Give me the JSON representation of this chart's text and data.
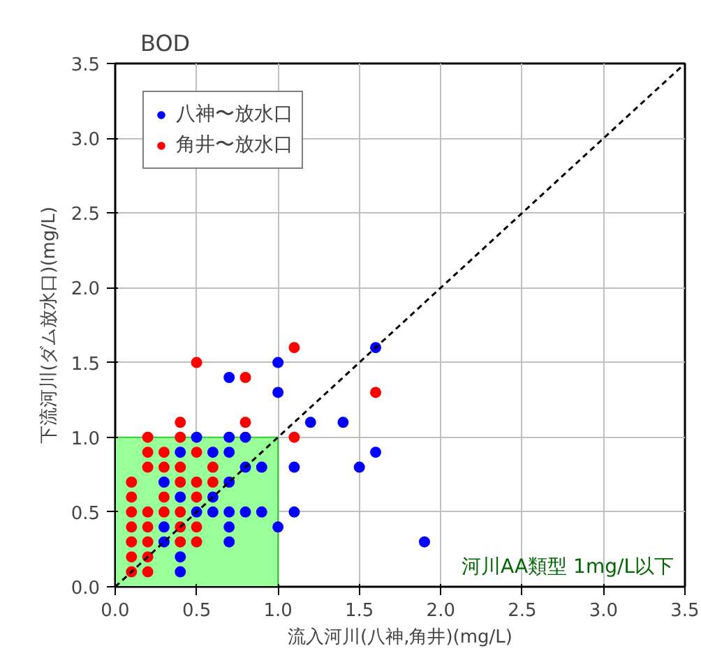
{
  "chart_data": {
    "type": "scatter",
    "title": "BOD",
    "xlabel": "流入河川(八神,角井)(mg/L)",
    "ylabel": "下流河川(ダム放水口)(mg/L)",
    "xlim": [
      0,
      3.5
    ],
    "ylim": [
      0,
      3.5
    ],
    "xticks": [
      {
        "value": 0,
        "label": "0.0"
      },
      {
        "value": 0.5,
        "label": "0.5"
      },
      {
        "value": 1,
        "label": "1.0"
      },
      {
        "value": 1.5,
        "label": "1.5"
      },
      {
        "value": 2,
        "label": "2.0"
      },
      {
        "value": 2.5,
        "label": "2.5"
      },
      {
        "value": 3,
        "label": "3.0"
      },
      {
        "value": 3.5,
        "label": "3.5"
      }
    ],
    "yticks": [
      {
        "value": 0,
        "label": "0.0"
      },
      {
        "value": 0.5,
        "label": "0.5"
      },
      {
        "value": 1,
        "label": "1.0"
      },
      {
        "value": 1.5,
        "label": "1.5"
      },
      {
        "value": 2,
        "label": "2.0"
      },
      {
        "value": 2.5,
        "label": "2.5"
      },
      {
        "value": 3,
        "label": "3.0"
      },
      {
        "value": 3.5,
        "label": "3.5"
      }
    ],
    "grid": true,
    "legend": "top left",
    "marker": "circle",
    "bands": [
      {
        "axis": "x",
        "from": 0,
        "to": 1,
        "color": "#99ff99"
      }
    ],
    "annotations": [
      "河川AA類型 1mg/L以下"
    ],
    "series": [
      {
        "name": "八神〜放水口",
        "color": "#0000ff",
        "x": [
          1.6,
          1.0,
          0.7,
          1.0,
          1.2,
          1.4,
          0.5,
          0.7,
          0.8,
          0.4,
          0.6,
          0.7,
          1.6,
          0.8,
          0.9,
          1.1,
          1.5,
          0.3,
          0.7,
          0.4,
          0.6,
          0.5,
          0.6,
          0.7,
          0.8,
          0.9,
          1.1,
          0.3,
          0.7,
          1.0,
          0.3,
          0.7,
          0.4,
          0.4,
          1.9
        ],
        "values": [
          1.6,
          1.5,
          1.4,
          1.3,
          1.1,
          1.1,
          1.0,
          1.0,
          1.0,
          0.9,
          0.9,
          0.9,
          0.9,
          0.8,
          0.8,
          0.8,
          0.8,
          0.7,
          0.7,
          0.6,
          0.6,
          0.5,
          0.5,
          0.5,
          0.5,
          0.5,
          0.5,
          0.4,
          0.4,
          0.4,
          0.3,
          0.3,
          0.2,
          0.1,
          0.3
        ]
      },
      {
        "name": "角井〜放水口",
        "color": "#ff0000",
        "x": [
          1.1,
          0.5,
          0.8,
          1.6,
          0.4,
          0.8,
          0.2,
          0.4,
          1.1,
          0.2,
          0.3,
          0.5,
          0.2,
          0.3,
          0.4,
          0.6,
          0.1,
          0.4,
          0.5,
          0.6,
          0.1,
          0.3,
          0.5,
          0.1,
          0.2,
          0.3,
          0.4,
          0.1,
          0.2,
          0.4,
          0.5,
          0.1,
          0.2,
          0.4,
          0.5,
          0.1,
          0.2,
          0.1,
          0.2
        ],
        "values": [
          1.6,
          1.5,
          1.4,
          1.3,
          1.1,
          1.1,
          1.0,
          1.0,
          1.0,
          0.9,
          0.9,
          0.9,
          0.8,
          0.8,
          0.8,
          0.8,
          0.7,
          0.7,
          0.7,
          0.7,
          0.6,
          0.6,
          0.6,
          0.5,
          0.5,
          0.5,
          0.5,
          0.4,
          0.4,
          0.4,
          0.4,
          0.3,
          0.3,
          0.3,
          0.3,
          0.2,
          0.2,
          0.1,
          0.1
        ]
      },
      {
        "type": "line",
        "line_style": "dashed",
        "marker": "none",
        "color": "#000000",
        "x": [
          0,
          3.5
        ],
        "values": [
          0,
          3.5
        ]
      }
    ]
  }
}
